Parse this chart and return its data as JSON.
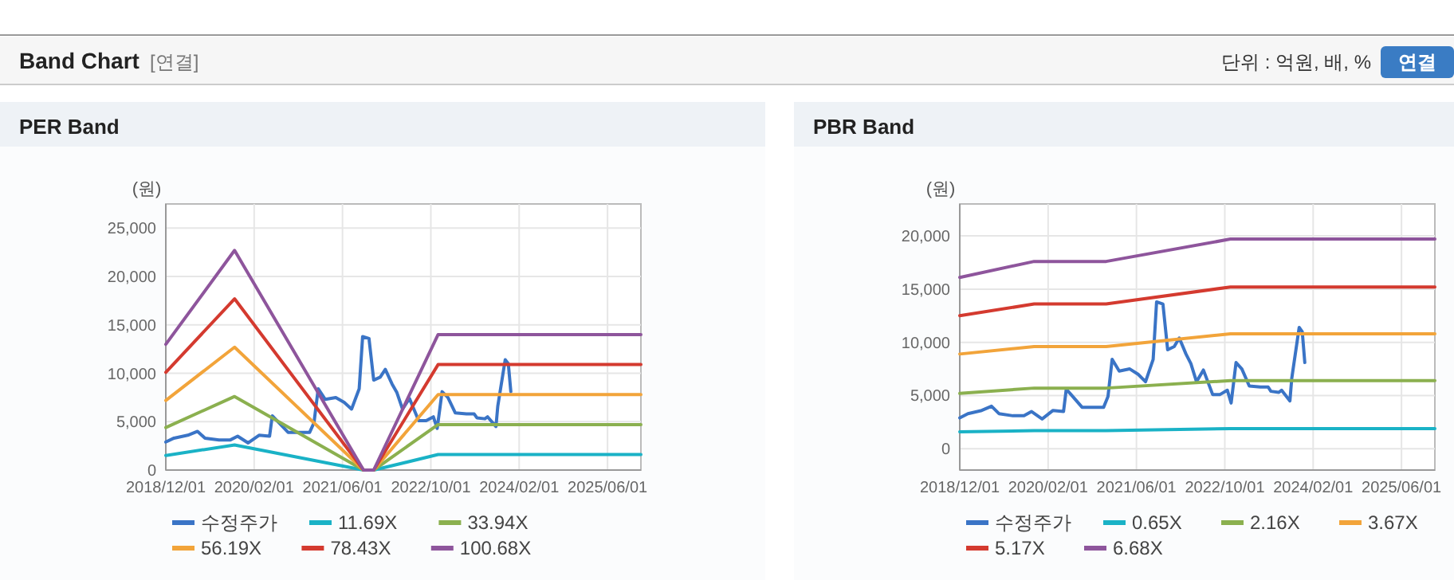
{
  "chart_data": [
    {
      "type": "other",
      "title": "Band Chart",
      "subtitle": "[연결]",
      "annotations": [
        "단위 : 억원, 배, %",
        "연결"
      ]
    },
    {
      "type": "line",
      "title": "PER Band",
      "ylabel": "(원)",
      "xlim": [
        "2018-12-01",
        "2026-02-01"
      ],
      "xticks": [
        {
          "value": "2018-12-01",
          "label": "2018/12/01"
        },
        {
          "value": "2020-04-01",
          "label": "2020/02/01"
        },
        {
          "value": "2021-08-01",
          "label": "2021/06/01"
        },
        {
          "value": "2022-12-01",
          "label": "2022/10/01"
        },
        {
          "value": "2024-04-01",
          "label": "2024/02/01"
        },
        {
          "value": "2025-08-01",
          "label": "2025/06/01"
        }
      ],
      "ylim": [
        0,
        27500
      ],
      "yticks": [
        0,
        {
          "value": 5000,
          "label": "5,000"
        },
        {
          "value": 10000,
          "label": "10,000"
        },
        {
          "value": 15000,
          "label": "15,000"
        },
        {
          "value": 20000,
          "label": "20,000"
        },
        {
          "value": 25000,
          "label": "25,000"
        }
      ],
      "grid": true,
      "legend": "bottom",
      "marker": "none",
      "line_style": "solid",
      "series": [
        {
          "name": "수정주가",
          "color": "#3a74c6",
          "x": [
            "2018-12-01",
            "2019-01-15",
            "2019-04-01",
            "2019-05-25",
            "2019-07-05",
            "2019-09-20",
            "2019-11-20",
            "2020-01-01",
            "2020-02-28",
            "2020-04-28",
            "2020-06-25",
            "2020-07-10",
            "2020-08-05",
            "2020-10-05",
            "2020-12-05",
            "2021-02-01",
            "2021-02-25",
            "2021-03-20",
            "2021-04-28",
            "2021-06-25",
            "2021-08-10",
            "2021-09-20",
            "2021-11-01",
            "2021-11-20",
            "2021-12-25",
            "2022-01-20",
            "2022-02-25",
            "2022-03-25",
            "2022-05-01",
            "2022-05-28",
            "2022-06-28",
            "2022-08-05",
            "2022-09-25",
            "2022-11-05",
            "2022-12-15",
            "2023-01-05",
            "2023-02-01",
            "2023-03-05",
            "2023-04-15",
            "2023-06-15",
            "2023-07-28",
            "2023-08-12",
            "2023-09-25",
            "2023-10-10",
            "2023-11-25",
            "2023-12-05",
            "2024-01-15",
            "2024-02-01",
            "2024-02-15"
          ],
          "values": [
            2900,
            3300,
            3600,
            4000,
            3300,
            3100,
            3100,
            3500,
            2800,
            3600,
            3500,
            5600,
            5100,
            3900,
            3900,
            3900,
            4900,
            8400,
            7300,
            7500,
            7000,
            6300,
            8400,
            13800,
            13600,
            9300,
            9600,
            10400,
            8900,
            8000,
            6300,
            7400,
            5100,
            5100,
            5500,
            4300,
            8100,
            7500,
            5900,
            5800,
            5800,
            5400,
            5300,
            5500,
            4500,
            6600,
            11400,
            11000,
            8100
          ]
        },
        {
          "name": "11.69X",
          "color": "#1ab2c6",
          "x": [
            "2018-12-01",
            "2019-12-15",
            "2021-11-25",
            "2022-01-20",
            "2023-01-10",
            "2026-02-01"
          ],
          "values": [
            1500,
            2600,
            0,
            0,
            1600,
            1600
          ]
        },
        {
          "name": "33.94X",
          "color": "#8bb04f",
          "x": [
            "2018-12-01",
            "2019-12-15",
            "2021-11-25",
            "2022-01-20",
            "2023-01-10",
            "2026-02-01"
          ],
          "values": [
            4400,
            7600,
            0,
            0,
            4700,
            4700
          ]
        },
        {
          "name": "56.19X",
          "color": "#f2a43a",
          "x": [
            "2018-12-01",
            "2019-12-15",
            "2021-11-25",
            "2022-01-20",
            "2023-01-10",
            "2026-02-01"
          ],
          "values": [
            7200,
            12700,
            0,
            0,
            7800,
            7800
          ]
        },
        {
          "name": "78.43X",
          "color": "#d43a2f",
          "x": [
            "2018-12-01",
            "2019-12-15",
            "2021-11-25",
            "2022-01-20",
            "2023-01-10",
            "2026-02-01"
          ],
          "values": [
            10100,
            17700,
            0,
            0,
            10900,
            10900
          ]
        },
        {
          "name": "100.68X",
          "color": "#8e559c",
          "x": [
            "2018-12-01",
            "2019-12-15",
            "2021-11-25",
            "2022-01-20",
            "2023-01-10",
            "2026-02-01"
          ],
          "values": [
            13000,
            22700,
            0,
            0,
            14000,
            14000
          ]
        }
      ]
    },
    {
      "type": "line",
      "title": "PBR Band",
      "ylabel": "(원)",
      "xlim": [
        "2018-12-01",
        "2026-02-01"
      ],
      "xticks": [
        {
          "value": "2018-12-01",
          "label": "2018/12/01"
        },
        {
          "value": "2020-04-01",
          "label": "2020/02/01"
        },
        {
          "value": "2021-08-01",
          "label": "2021/06/01"
        },
        {
          "value": "2022-12-01",
          "label": "2022/10/01"
        },
        {
          "value": "2024-04-01",
          "label": "2024/02/01"
        },
        {
          "value": "2025-08-01",
          "label": "2025/06/01"
        }
      ],
      "ylim": [
        -2000,
        23000
      ],
      "yticks": [
        0,
        {
          "value": 5000,
          "label": "5,000"
        },
        {
          "value": 10000,
          "label": "10,000"
        },
        {
          "value": 15000,
          "label": "15,000"
        },
        {
          "value": 20000,
          "label": "20,000"
        }
      ],
      "grid": true,
      "legend": "bottom",
      "marker": "none",
      "line_style": "solid",
      "series": [
        {
          "name": "수정주가",
          "color": "#3a74c6",
          "x": [
            "2018-12-01",
            "2019-01-15",
            "2019-04-01",
            "2019-05-25",
            "2019-07-05",
            "2019-09-20",
            "2019-11-20",
            "2020-01-01",
            "2020-02-28",
            "2020-04-28",
            "2020-06-25",
            "2020-07-10",
            "2020-08-05",
            "2020-10-05",
            "2020-12-05",
            "2021-02-01",
            "2021-02-25",
            "2021-03-20",
            "2021-04-28",
            "2021-06-25",
            "2021-08-10",
            "2021-09-20",
            "2021-11-01",
            "2021-11-20",
            "2021-12-25",
            "2022-01-20",
            "2022-02-25",
            "2022-03-25",
            "2022-05-01",
            "2022-05-28",
            "2022-06-28",
            "2022-08-05",
            "2022-09-25",
            "2022-11-05",
            "2022-12-15",
            "2023-01-05",
            "2023-02-01",
            "2023-03-05",
            "2023-04-15",
            "2023-06-15",
            "2023-07-28",
            "2023-08-12",
            "2023-09-25",
            "2023-10-10",
            "2023-11-25",
            "2023-12-05",
            "2024-01-15",
            "2024-02-01",
            "2024-02-15"
          ],
          "values": [
            2900,
            3300,
            3600,
            4000,
            3300,
            3100,
            3100,
            3500,
            2800,
            3600,
            3500,
            5600,
            5100,
            3900,
            3900,
            3900,
            4900,
            8400,
            7300,
            7500,
            7000,
            6300,
            8400,
            13800,
            13600,
            9300,
            9600,
            10400,
            8900,
            8000,
            6300,
            7400,
            5100,
            5100,
            5500,
            4300,
            8100,
            7500,
            5900,
            5800,
            5800,
            5400,
            5300,
            5500,
            4500,
            6600,
            11400,
            11000,
            8100
          ]
        },
        {
          "name": "0.65X",
          "color": "#1ab2c6",
          "x": [
            "2018-12-01",
            "2020-01-15",
            "2021-02-15",
            "2023-01-01",
            "2026-02-01"
          ],
          "values": [
            1600,
            1700,
            1700,
            1900,
            1900
          ]
        },
        {
          "name": "2.16X",
          "color": "#8bb04f",
          "x": [
            "2018-12-01",
            "2020-01-15",
            "2021-02-15",
            "2023-01-01",
            "2026-02-01"
          ],
          "values": [
            5200,
            5700,
            5700,
            6400,
            6400
          ]
        },
        {
          "name": "3.67X",
          "color": "#f2a43a",
          "x": [
            "2018-12-01",
            "2020-01-15",
            "2021-02-15",
            "2023-01-01",
            "2026-02-01"
          ],
          "values": [
            8900,
            9600,
            9600,
            10800,
            10800
          ]
        },
        {
          "name": "5.17X",
          "color": "#d43a2f",
          "x": [
            "2018-12-01",
            "2020-01-15",
            "2021-02-15",
            "2023-01-01",
            "2026-02-01"
          ],
          "values": [
            12500,
            13600,
            13600,
            15200,
            15200
          ]
        },
        {
          "name": "6.68X",
          "color": "#8e559c",
          "x": [
            "2018-12-01",
            "2020-01-15",
            "2021-02-15",
            "2023-01-01",
            "2026-02-01"
          ],
          "values": [
            16100,
            17600,
            17600,
            19700,
            19700
          ]
        }
      ]
    }
  ]
}
